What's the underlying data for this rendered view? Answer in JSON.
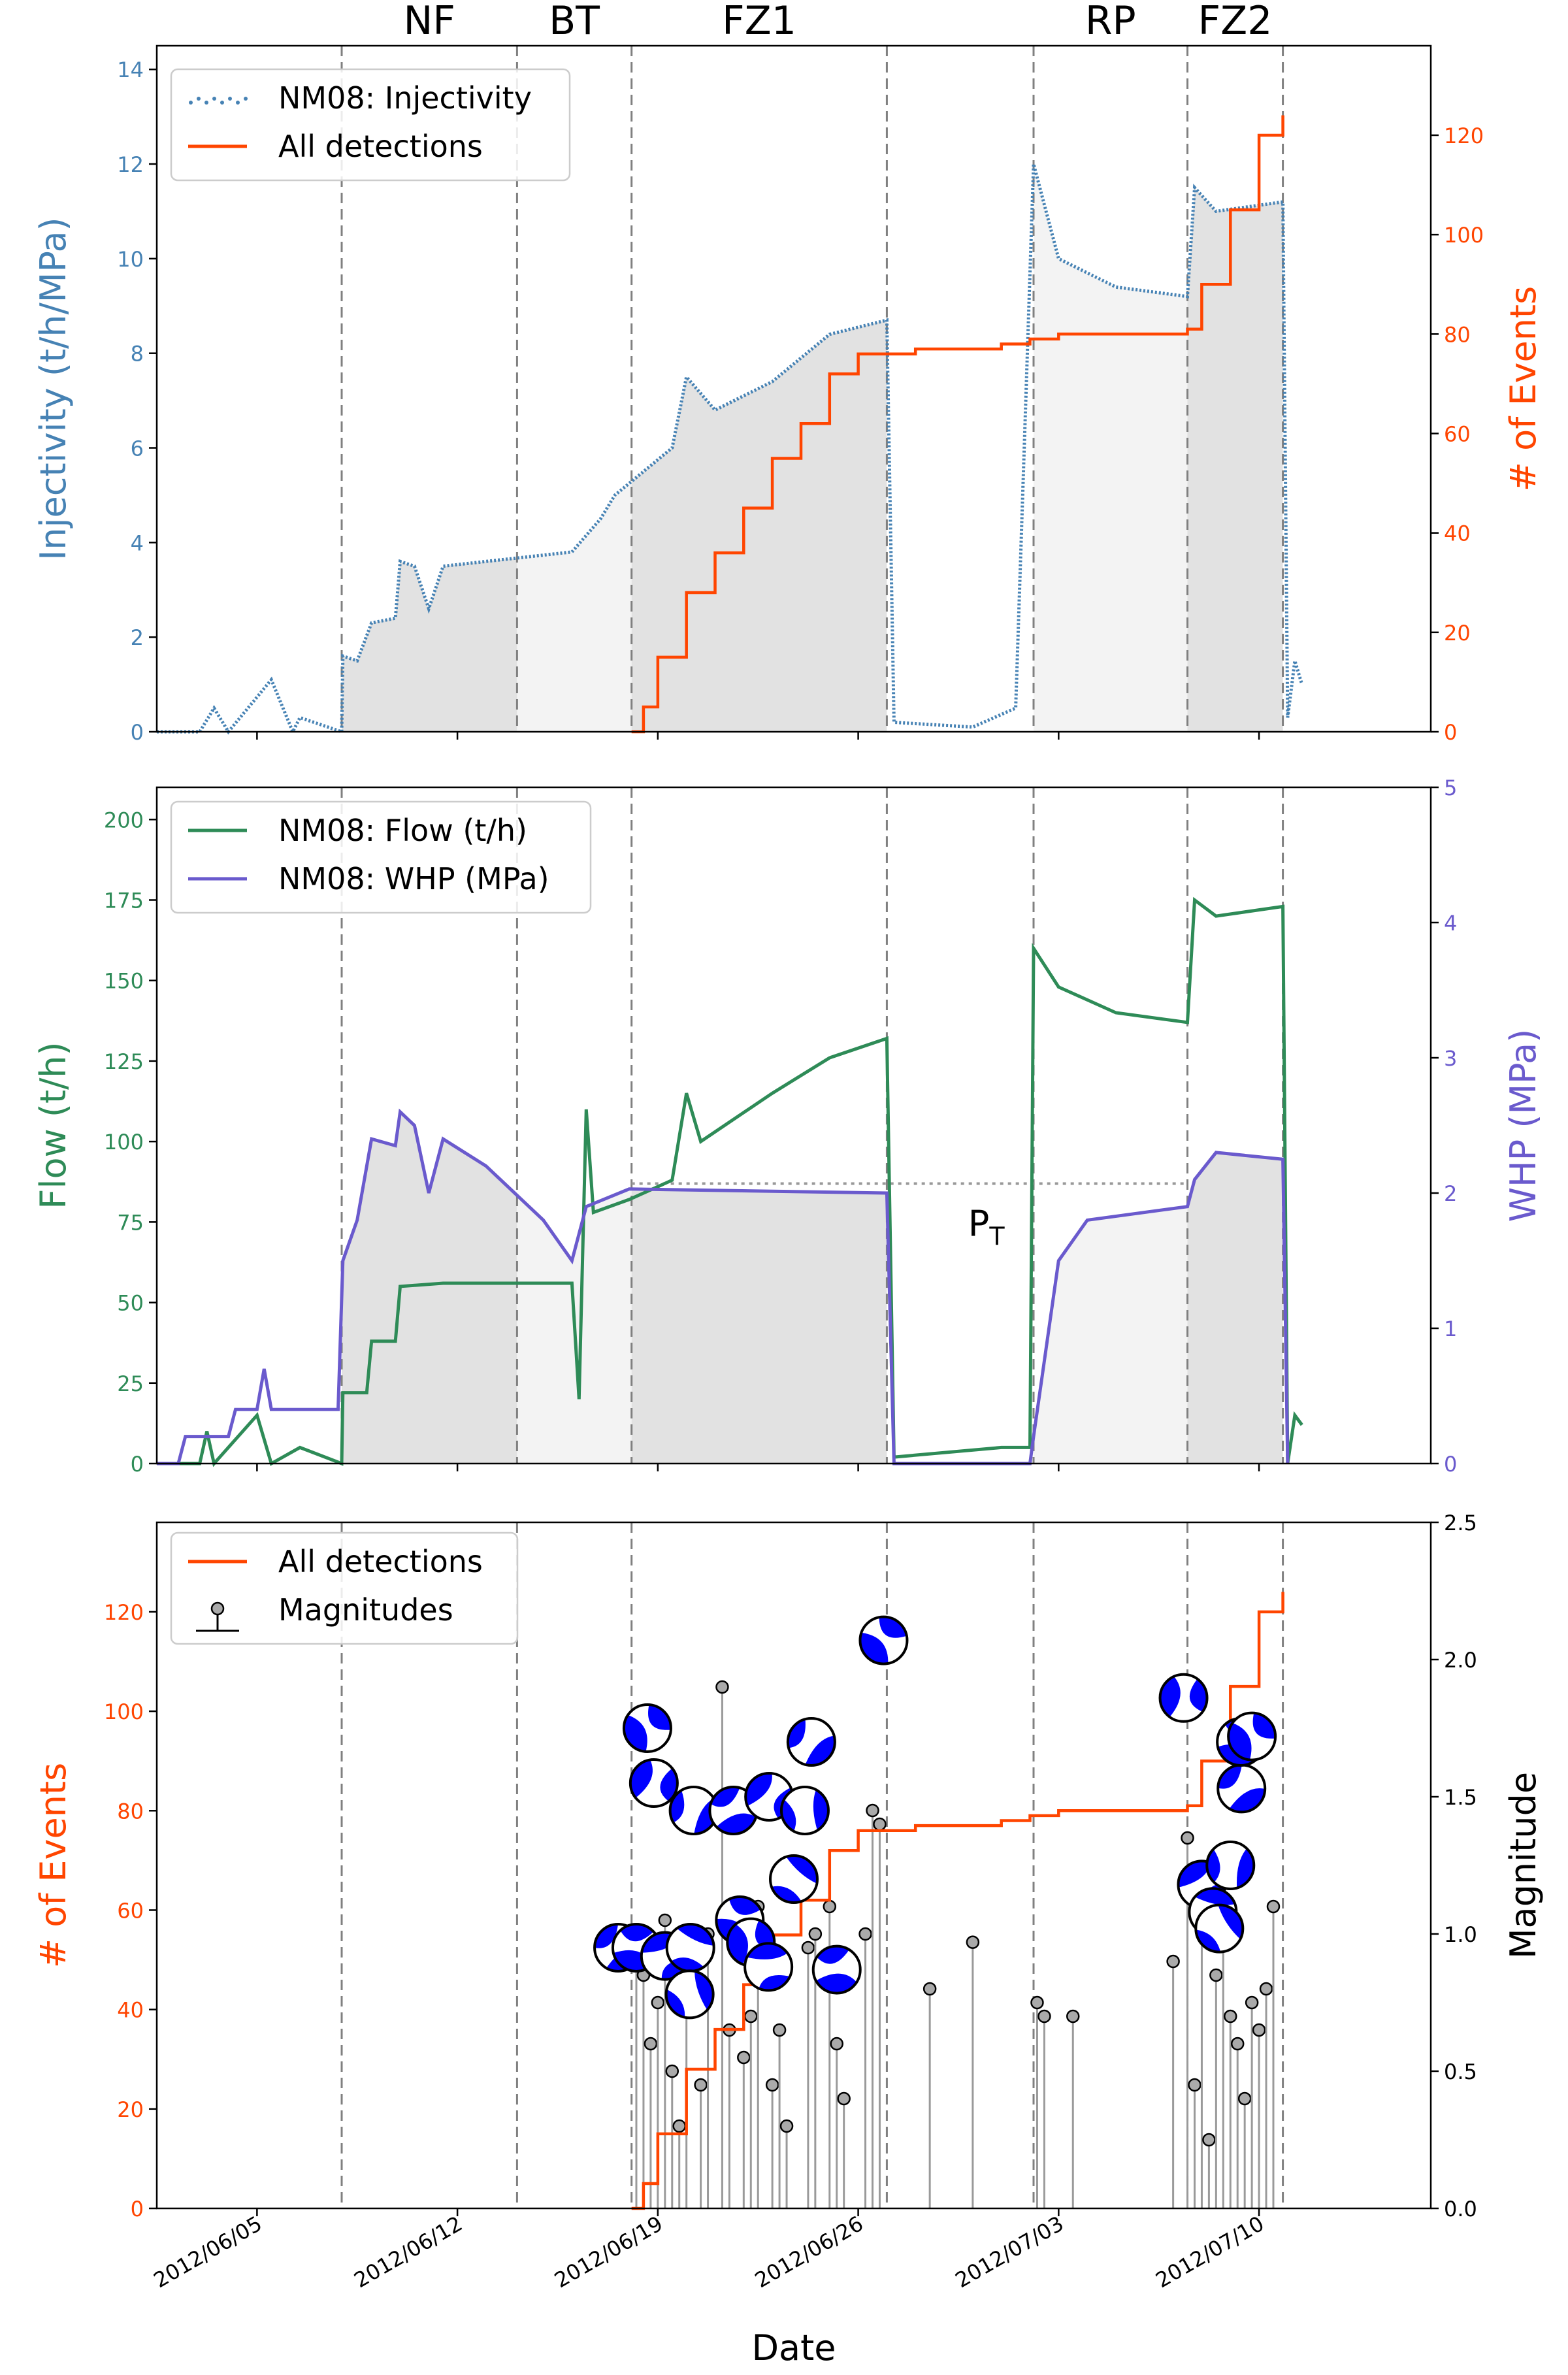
{
  "phase_labels": [
    "NF",
    "BT",
    "FZ1",
    "RP",
    "FZ2"
  ],
  "phase_boundaries": [
    "2012-06-07 23:00",
    "2012-06-14 02:00",
    "2012-06-18 02:00",
    "2012-06-27 00:00",
    "2012-07-02 03:00",
    "2012-07-07 12:00",
    "2012-07-10 20:00"
  ],
  "x_axis": {
    "label": "Date",
    "range": [
      "2012-06-01 12:00",
      "2012-07-16 00:00"
    ],
    "ticks": [
      "2012/06/05",
      "2012/06/12",
      "2012/06/19",
      "2012/06/26",
      "2012/07/03",
      "2012/07/10"
    ]
  },
  "colors": {
    "injectivity": "#4682b4",
    "detections": "#ff4500",
    "flow": "#2e8b57",
    "whp": "#6a5acd",
    "shade_dark": "#e2e2e2",
    "shade_light": "#f3f3f3",
    "boundary": "#808080",
    "beachball": "#0000ff"
  },
  "chart_data": [
    {
      "type": "line",
      "panel": "top",
      "ylabel_left": "Injectivity (t/h/MPa)",
      "ylabel_right": "# of Events",
      "ylim_left": [
        0,
        14.5
      ],
      "ylim_right": [
        0,
        138
      ],
      "yticks_left": [
        "0",
        "2",
        "4",
        "6",
        "8",
        "10",
        "12",
        "14"
      ],
      "yticks_right": [
        "0",
        "20",
        "40",
        "60",
        "80",
        "100",
        "120"
      ],
      "legend": [
        "NM08: Injectivity",
        "All detections"
      ],
      "legend_position": "upper-left",
      "series": [
        {
          "name": "NM08: Injectivity",
          "style": "dotted",
          "axis": "left",
          "points": [
            [
              "2012-06-01 12:00",
              0
            ],
            [
              "2012-06-03 00:00",
              0
            ],
            [
              "2012-06-03 12:00",
              0.5
            ],
            [
              "2012-06-04 00:00",
              0
            ],
            [
              "2012-06-05 12:00",
              1.1
            ],
            [
              "2012-06-06 06:00",
              0
            ],
            [
              "2012-06-06 12:00",
              0.3
            ],
            [
              "2012-06-07 23:00",
              0
            ],
            [
              "2012-06-08 00:00",
              1.6
            ],
            [
              "2012-06-08 12:00",
              1.5
            ],
            [
              "2012-06-09 00:00",
              2.3
            ],
            [
              "2012-06-09 20:00",
              2.4
            ],
            [
              "2012-06-10 00:00",
              3.6
            ],
            [
              "2012-06-10 12:00",
              3.5
            ],
            [
              "2012-06-11 00:00",
              2.6
            ],
            [
              "2012-06-11 12:00",
              3.5
            ],
            [
              "2012-06-13 00:00",
              3.6
            ],
            [
              "2012-06-16 00:00",
              3.8
            ],
            [
              "2012-06-17 00:00",
              4.5
            ],
            [
              "2012-06-17 12:00",
              5.0
            ],
            [
              "2012-06-19 12:00",
              6.0
            ],
            [
              "2012-06-20 00:00",
              7.5
            ],
            [
              "2012-06-21 00:00",
              6.8
            ],
            [
              "2012-06-23 00:00",
              7.4
            ],
            [
              "2012-06-25 00:00",
              8.4
            ],
            [
              "2012-06-27 00:00",
              8.7
            ],
            [
              "2012-06-27 06:00",
              0.2
            ],
            [
              "2012-06-30 00:00",
              0.1
            ],
            [
              "2012-07-01 12:00",
              0.5
            ],
            [
              "2012-07-02 03:00",
              12.0
            ],
            [
              "2012-07-03 00:00",
              10.0
            ],
            [
              "2012-07-05 00:00",
              9.4
            ],
            [
              "2012-07-07 12:00",
              9.2
            ],
            [
              "2012-07-07 18:00",
              11.5
            ],
            [
              "2012-07-08 12:00",
              11.0
            ],
            [
              "2012-07-10 20:00",
              11.2
            ],
            [
              "2012-07-11 00:00",
              0.3
            ],
            [
              "2012-07-11 06:00",
              1.5
            ],
            [
              "2012-07-11 12:00",
              1.0
            ]
          ]
        },
        {
          "name": "All detections",
          "style": "step",
          "axis": "right",
          "points": [
            [
              "2012-06-18 02:00",
              0
            ],
            [
              "2012-06-18 12:00",
              5
            ],
            [
              "2012-06-19 00:00",
              15
            ],
            [
              "2012-06-20 00:00",
              28
            ],
            [
              "2012-06-21 00:00",
              36
            ],
            [
              "2012-06-22 00:00",
              45
            ],
            [
              "2012-06-23 00:00",
              55
            ],
            [
              "2012-06-24 00:00",
              62
            ],
            [
              "2012-06-25 00:00",
              72
            ],
            [
              "2012-06-26 00:00",
              76
            ],
            [
              "2012-06-28 00:00",
              77
            ],
            [
              "2012-07-01 00:00",
              78
            ],
            [
              "2012-07-02 00:00",
              79
            ],
            [
              "2012-07-03 00:00",
              80
            ],
            [
              "2012-07-07 12:00",
              81
            ],
            [
              "2012-07-08 00:00",
              90
            ],
            [
              "2012-07-09 00:00",
              105
            ],
            [
              "2012-07-10 00:00",
              120
            ],
            [
              "2012-07-10 20:00",
              124
            ]
          ]
        }
      ]
    },
    {
      "type": "line",
      "panel": "middle",
      "ylabel_left": "Flow (t/h)",
      "ylabel_right": "WHP (MPa)",
      "ylim_left": [
        0,
        210
      ],
      "ylim_right": [
        0,
        5
      ],
      "yticks_left": [
        "0",
        "25",
        "50",
        "75",
        "100",
        "125",
        "150",
        "175",
        "200"
      ],
      "yticks_right": [
        "0",
        "1",
        "2",
        "3",
        "4",
        "5"
      ],
      "legend": [
        "NM08: Flow (t/h)",
        "NM08: WHP (MPa)"
      ],
      "legend_position": "upper-left",
      "annotation": "P_T",
      "annotation_value": 2.07,
      "series": [
        {
          "name": "NM08: Flow (t/h)",
          "axis": "left",
          "points": [
            [
              "2012-06-01 12:00",
              0
            ],
            [
              "2012-06-03 00:00",
              0
            ],
            [
              "2012-06-03 06:00",
              10
            ],
            [
              "2012-06-03 12:00",
              0
            ],
            [
              "2012-06-05 00:00",
              15
            ],
            [
              "2012-06-05 12:00",
              0
            ],
            [
              "2012-06-06 12:00",
              5
            ],
            [
              "2012-06-07 23:00",
              0
            ],
            [
              "2012-06-08 00:00",
              22
            ],
            [
              "2012-06-08 20:00",
              22
            ],
            [
              "2012-06-09 00:00",
              38
            ],
            [
              "2012-06-09 20:00",
              38
            ],
            [
              "2012-06-10 00:00",
              55
            ],
            [
              "2012-06-11 12:00",
              56
            ],
            [
              "2012-06-16 00:00",
              56
            ],
            [
              "2012-06-16 06:00",
              20
            ],
            [
              "2012-06-16 12:00",
              110
            ],
            [
              "2012-06-16 18:00",
              78
            ],
            [
              "2012-06-18 00:00",
              82
            ],
            [
              "2012-06-19 12:00",
              88
            ],
            [
              "2012-06-20 00:00",
              115
            ],
            [
              "2012-06-20 12:00",
              100
            ],
            [
              "2012-06-23 00:00",
              115
            ],
            [
              "2012-06-25 00:00",
              126
            ],
            [
              "2012-06-27 00:00",
              132
            ],
            [
              "2012-06-27 06:00",
              2
            ],
            [
              "2012-07-01 00:00",
              5
            ],
            [
              "2012-07-02 00:00",
              5
            ],
            [
              "2012-07-02 03:00",
              160
            ],
            [
              "2012-07-03 00:00",
              148
            ],
            [
              "2012-07-05 00:00",
              140
            ],
            [
              "2012-07-07 12:00",
              137
            ],
            [
              "2012-07-07 18:00",
              175
            ],
            [
              "2012-07-08 12:00",
              170
            ],
            [
              "2012-07-10 20:00",
              173
            ],
            [
              "2012-07-11 00:00",
              0
            ],
            [
              "2012-07-11 06:00",
              15
            ],
            [
              "2012-07-11 12:00",
              12
            ]
          ]
        },
        {
          "name": "NM08: WHP (MPa)",
          "axis": "right",
          "points": [
            [
              "2012-06-01 12:00",
              0
            ],
            [
              "2012-06-02 06:00",
              0
            ],
            [
              "2012-06-02 12:00",
              0.2
            ],
            [
              "2012-06-04 00:00",
              0.2
            ],
            [
              "2012-06-04 06:00",
              0.4
            ],
            [
              "2012-06-05 00:00",
              0.4
            ],
            [
              "2012-06-05 06:00",
              0.7
            ],
            [
              "2012-06-05 12:00",
              0.4
            ],
            [
              "2012-06-07 20:00",
              0.4
            ],
            [
              "2012-06-08 00:00",
              1.5
            ],
            [
              "2012-06-08 12:00",
              1.8
            ],
            [
              "2012-06-09 00:00",
              2.4
            ],
            [
              "2012-06-09 20:00",
              2.35
            ],
            [
              "2012-06-10 00:00",
              2.6
            ],
            [
              "2012-06-10 12:00",
              2.5
            ],
            [
              "2012-06-11 00:00",
              2.0
            ],
            [
              "2012-06-11 12:00",
              2.4
            ],
            [
              "2012-06-13 00:00",
              2.2
            ],
            [
              "2012-06-15 00:00",
              1.8
            ],
            [
              "2012-06-16 00:00",
              1.5
            ],
            [
              "2012-06-16 12:00",
              1.9
            ],
            [
              "2012-06-18 00:00",
              2.03
            ],
            [
              "2012-06-27 00:00",
              2.0
            ],
            [
              "2012-06-27 06:00",
              0
            ],
            [
              "2012-07-02 00:00",
              0
            ],
            [
              "2012-07-02 03:00",
              0.2
            ],
            [
              "2012-07-03 00:00",
              1.5
            ],
            [
              "2012-07-04 00:00",
              1.8
            ],
            [
              "2012-07-07 12:00",
              1.9
            ],
            [
              "2012-07-07 18:00",
              2.1
            ],
            [
              "2012-07-08 12:00",
              2.3
            ],
            [
              "2012-07-10 20:00",
              2.25
            ],
            [
              "2012-07-11 00:00",
              0
            ]
          ]
        }
      ]
    },
    {
      "type": "scatter",
      "panel": "bottom",
      "xlabel": "Date",
      "ylabel_left": "# of Events",
      "ylabel_right": "Magnitude",
      "ylim_left": [
        0,
        138
      ],
      "ylim_right": [
        0,
        2.5
      ],
      "yticks_left": [
        "0",
        "20",
        "40",
        "60",
        "80",
        "100",
        "120"
      ],
      "yticks_right": [
        "0.0",
        "0.5",
        "1.0",
        "1.5",
        "2.0",
        "2.5"
      ],
      "legend": [
        "All detections",
        "Magnitudes"
      ],
      "legend_position": "upper-left",
      "magnitudes": [
        [
          "2012-06-18 06:00",
          0.9
        ],
        [
          "2012-06-18 12:00",
          0.85
        ],
        [
          "2012-06-18 18:00",
          0.6
        ],
        [
          "2012-06-19 00:00",
          0.75
        ],
        [
          "2012-06-19 06:00",
          1.05
        ],
        [
          "2012-06-19 12:00",
          0.5
        ],
        [
          "2012-06-19 18:00",
          0.3
        ],
        [
          "2012-06-20 00:00",
          0.95
        ],
        [
          "2012-06-20 12:00",
          0.45
        ],
        [
          "2012-06-20 18:00",
          1.0
        ],
        [
          "2012-06-21 06:00",
          1.9
        ],
        [
          "2012-06-21 12:00",
          0.65
        ],
        [
          "2012-06-22 00:00",
          0.55
        ],
        [
          "2012-06-22 06:00",
          0.7
        ],
        [
          "2012-06-22 12:00",
          1.1
        ],
        [
          "2012-06-23 00:00",
          0.45
        ],
        [
          "2012-06-23 06:00",
          0.65
        ],
        [
          "2012-06-23 12:00",
          0.3
        ],
        [
          "2012-06-24 06:00",
          0.95
        ],
        [
          "2012-06-24 12:00",
          1.0
        ],
        [
          "2012-06-25 00:00",
          1.1
        ],
        [
          "2012-06-25 06:00",
          0.6
        ],
        [
          "2012-06-25 12:00",
          0.4
        ],
        [
          "2012-06-26 06:00",
          1.0
        ],
        [
          "2012-06-26 12:00",
          1.45
        ],
        [
          "2012-06-26 18:00",
          1.4
        ],
        [
          "2012-06-28 12:00",
          0.8
        ],
        [
          "2012-06-30 00:00",
          0.97
        ],
        [
          "2012-07-02 06:00",
          0.75
        ],
        [
          "2012-07-02 12:00",
          0.7
        ],
        [
          "2012-07-03 12:00",
          0.7
        ],
        [
          "2012-07-07 00:00",
          0.9
        ],
        [
          "2012-07-07 12:00",
          1.35
        ],
        [
          "2012-07-07 18:00",
          0.45
        ],
        [
          "2012-07-08 00:00",
          1.1
        ],
        [
          "2012-07-08 06:00",
          0.25
        ],
        [
          "2012-07-08 12:00",
          0.85
        ],
        [
          "2012-07-08 18:00",
          1.3
        ],
        [
          "2012-07-09 00:00",
          0.7
        ],
        [
          "2012-07-09 06:00",
          0.6
        ],
        [
          "2012-07-09 12:00",
          0.4
        ],
        [
          "2012-07-09 18:00",
          0.75
        ],
        [
          "2012-07-10 00:00",
          0.65
        ],
        [
          "2012-07-10 06:00",
          0.8
        ],
        [
          "2012-07-10 12:00",
          1.1
        ]
      ],
      "focal_mechanisms": [
        [
          "2012-06-17 18:00",
          0.95
        ],
        [
          "2012-06-18 06:00",
          0.95
        ],
        [
          "2012-06-18 12:00",
          1.75
        ],
        [
          "2012-06-19 00:00",
          1.55
        ],
        [
          "2012-06-19 06:00",
          0.92
        ],
        [
          "2012-06-20 00:00",
          0.95
        ],
        [
          "2012-06-20 06:00",
          0.78
        ],
        [
          "2012-06-20 06:00",
          1.45
        ],
        [
          "2012-06-21 12:00",
          1.45
        ],
        [
          "2012-06-22 00:00",
          1.05
        ],
        [
          "2012-06-22 06:00",
          0.97
        ],
        [
          "2012-06-22 18:00",
          1.5
        ],
        [
          "2012-06-23 00:00",
          0.88
        ],
        [
          "2012-06-23 18:00",
          1.2
        ],
        [
          "2012-06-24 00:00",
          1.45
        ],
        [
          "2012-06-24 12:00",
          1.7
        ],
        [
          "2012-06-25 06:00",
          0.87
        ],
        [
          "2012-06-26 18:00",
          2.07
        ],
        [
          "2012-07-07 12:00",
          1.86
        ],
        [
          "2012-07-08 00:00",
          1.18
        ],
        [
          "2012-07-08 06:00",
          1.08
        ],
        [
          "2012-07-08 18:00",
          1.02
        ],
        [
          "2012-07-09 00:00",
          1.25
        ],
        [
          "2012-07-09 06:00",
          1.53
        ],
        [
          "2012-07-09 12:00",
          1.7
        ],
        [
          "2012-07-09 18:00",
          1.72
        ]
      ]
    }
  ]
}
